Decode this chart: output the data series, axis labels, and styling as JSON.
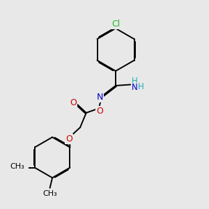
{
  "background_color": "#e8e8e8",
  "atom_colors": {
    "C": "#000000",
    "N": "#0000cc",
    "O": "#cc0000",
    "Cl": "#22bb22",
    "H": "#22aaaa"
  },
  "bond_color": "#000000",
  "bond_width": 1.4,
  "dbo": 0.055,
  "figsize": [
    3.0,
    3.0
  ],
  "dpi": 100
}
